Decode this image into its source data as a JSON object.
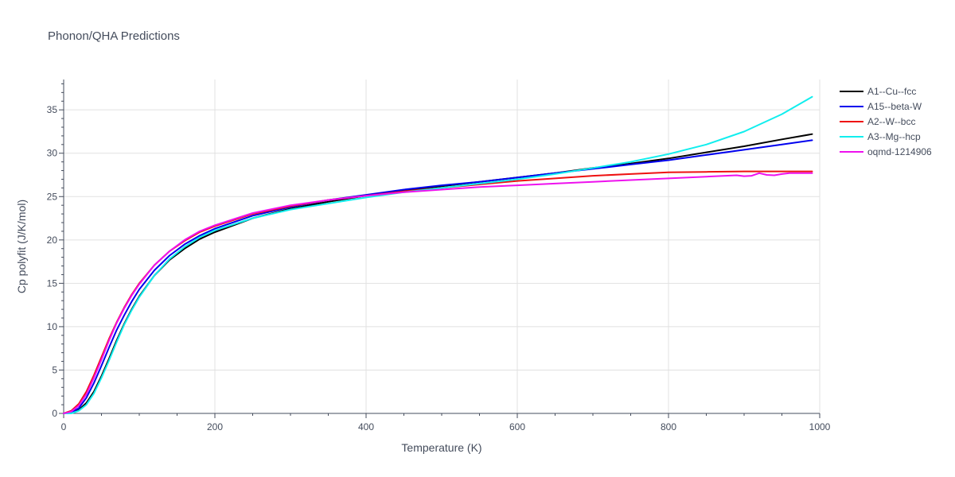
{
  "chart_data": {
    "type": "line",
    "title": "Phonon/QHA Predictions",
    "xlabel": "Temperature (K)",
    "ylabel": "Cp polyfit (J/K/mol)",
    "xlim": [
      0,
      1000
    ],
    "ylim": [
      0,
      38.5
    ],
    "xticks": [
      0,
      200,
      400,
      600,
      800,
      1000
    ],
    "yticks": [
      0,
      5,
      10,
      15,
      20,
      25,
      30,
      35
    ],
    "grid": true,
    "legend_position": "right",
    "series": [
      {
        "name": "A1--Cu--fcc",
        "color": "#000000",
        "x": [
          0,
          10,
          20,
          30,
          40,
          50,
          60,
          70,
          80,
          90,
          100,
          120,
          140,
          160,
          180,
          200,
          250,
          300,
          350,
          400,
          450,
          500,
          550,
          600,
          650,
          700,
          750,
          800,
          850,
          900,
          950,
          990
        ],
        "y": [
          0,
          0.05,
          0.4,
          1.2,
          2.5,
          4.3,
          6.3,
          8.4,
          10.3,
          12.0,
          13.5,
          15.9,
          17.7,
          19.0,
          20.1,
          20.9,
          22.5,
          23.6,
          24.4,
          25.1,
          25.7,
          26.2,
          26.7,
          27.2,
          27.7,
          28.3,
          28.8,
          29.4,
          30.1,
          30.8,
          31.6,
          32.2
        ]
      },
      {
        "name": "A15--beta-W",
        "color": "#0000ee",
        "x": [
          0,
          10,
          20,
          30,
          40,
          50,
          60,
          70,
          80,
          90,
          100,
          120,
          140,
          160,
          180,
          200,
          250,
          300,
          350,
          400,
          450,
          500,
          550,
          600,
          650,
          700,
          750,
          800,
          850,
          900,
          950,
          990
        ],
        "y": [
          0,
          0.1,
          0.6,
          1.8,
          3.5,
          5.5,
          7.6,
          9.6,
          11.3,
          12.9,
          14.3,
          16.5,
          18.2,
          19.5,
          20.5,
          21.3,
          22.8,
          23.8,
          24.6,
          25.2,
          25.8,
          26.3,
          26.7,
          27.2,
          27.7,
          28.2,
          28.7,
          29.2,
          29.8,
          30.4,
          31.0,
          31.5
        ]
      },
      {
        "name": "A2--W--bcc",
        "color": "#ee1111",
        "x": [
          0,
          10,
          20,
          30,
          40,
          50,
          60,
          70,
          80,
          90,
          100,
          120,
          140,
          160,
          180,
          200,
          250,
          300,
          350,
          400,
          450,
          500,
          550,
          600,
          650,
          700,
          750,
          800,
          850,
          900,
          950,
          990
        ],
        "y": [
          0,
          0.3,
          1.1,
          2.5,
          4.4,
          6.5,
          8.6,
          10.5,
          12.2,
          13.7,
          15.0,
          17.1,
          18.7,
          19.9,
          20.9,
          21.6,
          23.0,
          23.9,
          24.6,
          25.1,
          25.6,
          26.0,
          26.4,
          26.8,
          27.1,
          27.4,
          27.6,
          27.8,
          27.85,
          27.9,
          27.9,
          27.9
        ]
      },
      {
        "name": "A3--Mg--hcp",
        "color": "#11eeee",
        "x": [
          0,
          10,
          20,
          30,
          40,
          50,
          60,
          70,
          80,
          90,
          100,
          120,
          140,
          160,
          180,
          200,
          250,
          300,
          350,
          400,
          450,
          500,
          550,
          600,
          650,
          700,
          750,
          800,
          850,
          900,
          950,
          990
        ],
        "y": [
          0,
          0.0,
          0.3,
          1.0,
          2.3,
          4.1,
          6.1,
          8.2,
          10.2,
          11.9,
          13.4,
          15.9,
          17.8,
          19.2,
          20.3,
          21.1,
          22.5,
          23.5,
          24.2,
          24.9,
          25.5,
          26.0,
          26.5,
          27.0,
          27.6,
          28.3,
          29.0,
          29.9,
          31.0,
          32.5,
          34.5,
          36.5
        ]
      },
      {
        "name": "oqmd-1214906",
        "color": "#ee11ee",
        "x": [
          0,
          10,
          20,
          30,
          40,
          50,
          60,
          70,
          80,
          90,
          100,
          120,
          140,
          160,
          180,
          200,
          250,
          300,
          350,
          400,
          450,
          500,
          550,
          600,
          650,
          700,
          750,
          800,
          850,
          890,
          900,
          910,
          920,
          930,
          940,
          950,
          960,
          970,
          990
        ],
        "y": [
          0,
          0.2,
          0.9,
          2.2,
          4.1,
          6.2,
          8.4,
          10.4,
          12.1,
          13.6,
          14.9,
          17.1,
          18.7,
          20.0,
          21.0,
          21.7,
          23.1,
          24.0,
          24.6,
          25.1,
          25.5,
          25.8,
          26.1,
          26.3,
          26.5,
          26.7,
          26.9,
          27.1,
          27.3,
          27.45,
          27.35,
          27.4,
          27.7,
          27.5,
          27.45,
          27.6,
          27.7,
          27.7,
          27.7
        ]
      }
    ]
  }
}
